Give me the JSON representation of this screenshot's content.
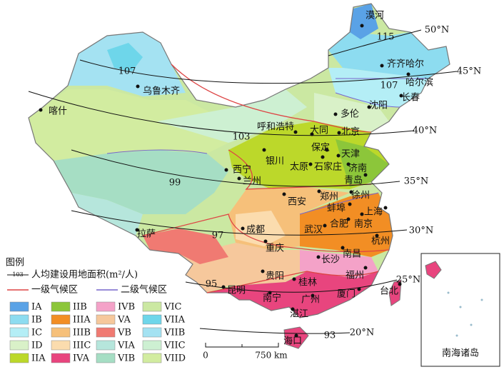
{
  "map": {
    "cities": [
      "漠河",
      "齐齐哈尔",
      "哈尔滨",
      "长春",
      "沈阳",
      "乌鲁木齐",
      "喀什",
      "多伦",
      "呼和浩特",
      "大同",
      "北京",
      "保定",
      "天津",
      "银川",
      "西宁",
      "兰州",
      "太原",
      "石家庄",
      "济南",
      "青岛",
      "西安",
      "郑州",
      "徐州",
      "蚌埠",
      "上海",
      "南京",
      "合肥",
      "武汉",
      "成都",
      "拉萨",
      "重庆",
      "杭州",
      "长沙",
      "南昌",
      "贵阳",
      "桂林",
      "福州",
      "昆明",
      "南宁",
      "广州",
      "厦门",
      "台北",
      "湛江",
      "海口"
    ],
    "latitudes": [
      "50°N",
      "45°N",
      "40°N",
      "35°N",
      "30°N",
      "25°N",
      "20°N"
    ],
    "isolines": [
      115,
      107,
      107,
      103,
      99,
      97,
      95,
      93
    ]
  },
  "legend": {
    "title": "图例",
    "isoline_sample": 103,
    "isoline": "人均建设用地面积(m²/人)",
    "primary_boundary": "一级气候区",
    "secondary_boundary": "二级气候区",
    "zones": [
      {
        "label": "IA",
        "color": "#5aa2e6"
      },
      {
        "label": "IB",
        "color": "#8ddcf0"
      },
      {
        "label": "IC",
        "color": "#b4eef6"
      },
      {
        "label": "ID",
        "color": "#d9f1c8"
      },
      {
        "label": "IIA",
        "color": "#bcd82a"
      },
      {
        "label": "IIB",
        "color": "#8cc63a"
      },
      {
        "label": "IIIA",
        "color": "#f28e24"
      },
      {
        "label": "IIIB",
        "color": "#f6c07a"
      },
      {
        "label": "IIIC",
        "color": "#fbdcae"
      },
      {
        "label": "IVA",
        "color": "#e8457e"
      },
      {
        "label": "IVB",
        "color": "#f4a2c8"
      },
      {
        "label": "VA",
        "color": "#f6c89c"
      },
      {
        "label": "VB",
        "color": "#f07a72"
      },
      {
        "label": "VIA",
        "color": "#b6e6dc"
      },
      {
        "label": "VIB",
        "color": "#a6dec4"
      },
      {
        "label": "VIC",
        "color": "#cbe8a2"
      },
      {
        "label": "VIIA",
        "color": "#6ed6ea"
      },
      {
        "label": "VIIB",
        "color": "#a4e2f2"
      },
      {
        "label": "VIIC",
        "color": "#cdf0d2"
      },
      {
        "label": "VIID",
        "color": "#d2eca0"
      }
    ]
  },
  "scale": {
    "start": "0",
    "end": "750 km"
  },
  "inset": {
    "title": "南海诸岛"
  }
}
